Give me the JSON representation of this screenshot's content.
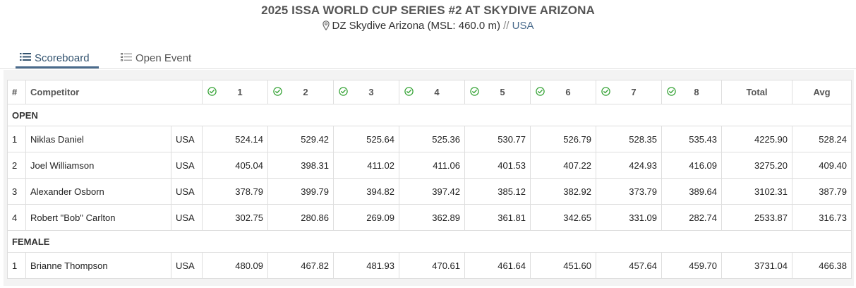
{
  "event": {
    "title": "2025 ISSA WORLD CUP SERIES #2 AT SKYDIVE ARIZONA",
    "location": "DZ Skydive Arizona (MSL: 460.0 m)",
    "separator": "//",
    "country": "USA"
  },
  "tabs": [
    {
      "label": "Scoreboard",
      "icon": "list-icon",
      "active": true
    },
    {
      "label": "Open Event",
      "icon": "list-icon",
      "active": false
    }
  ],
  "table": {
    "headers": {
      "rank": "#",
      "competitor": "Competitor",
      "rounds": [
        "1",
        "2",
        "3",
        "4",
        "5",
        "6",
        "7",
        "8"
      ],
      "total": "Total",
      "avg": "Avg"
    },
    "round_status_icon": "check-circle-icon",
    "round_status_color": "#3aa53a",
    "sections": [
      {
        "name": "OPEN",
        "rows": [
          {
            "rank": "1",
            "name": "Niklas Daniel",
            "country": "USA",
            "scores": [
              "524.14",
              "529.42",
              "525.64",
              "525.36",
              "530.77",
              "526.79",
              "528.35",
              "535.43"
            ],
            "total": "4225.90",
            "avg": "528.24"
          },
          {
            "rank": "2",
            "name": "Joel Williamson",
            "country": "USA",
            "scores": [
              "405.04",
              "398.31",
              "411.02",
              "411.06",
              "401.53",
              "407.22",
              "424.93",
              "416.09"
            ],
            "total": "3275.20",
            "avg": "409.40"
          },
          {
            "rank": "3",
            "name": "Alexander Osborn",
            "country": "USA",
            "scores": [
              "378.79",
              "399.79",
              "394.82",
              "397.42",
              "385.12",
              "382.92",
              "373.79",
              "389.64"
            ],
            "total": "3102.31",
            "avg": "387.79"
          },
          {
            "rank": "4",
            "name": "Robert \"Bob\" Carlton",
            "country": "USA",
            "scores": [
              "302.75",
              "280.86",
              "269.09",
              "362.89",
              "361.81",
              "342.65",
              "331.09",
              "282.74"
            ],
            "total": "2533.87",
            "avg": "316.73"
          }
        ]
      },
      {
        "name": "FEMALE",
        "rows": [
          {
            "rank": "1",
            "name": "Brianne Thompson",
            "country": "USA",
            "scores": [
              "480.09",
              "467.82",
              "481.93",
              "470.61",
              "461.64",
              "451.60",
              "457.64",
              "459.70"
            ],
            "total": "3731.04",
            "avg": "466.38"
          }
        ]
      }
    ]
  }
}
